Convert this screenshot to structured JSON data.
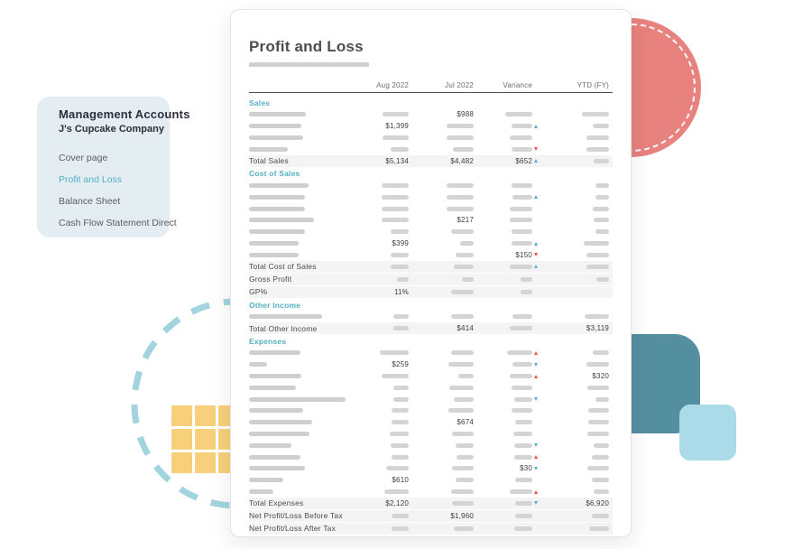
{
  "sidebar": {
    "title": "Management Accounts",
    "subtitle": "J's Cupcake Company",
    "items": [
      {
        "label": "Cover page",
        "active": false
      },
      {
        "label": "Profit and Loss",
        "active": true
      },
      {
        "label": "Balance Sheet",
        "active": false
      },
      {
        "label": "Cash Flow Statement Direct",
        "active": false
      }
    ]
  },
  "report": {
    "title": "Profit and Loss",
    "columns": [
      "Aug 2022",
      "Jul 2022",
      "Variance",
      "YTD (FY)"
    ],
    "rows": [
      {
        "t": "sec",
        "label": "Sales"
      },
      {
        "t": "item",
        "lw": 63,
        "c": [
          {
            "b": 29
          },
          {
            "v": "$988"
          },
          {
            "b": 30
          },
          {
            "b": 30
          }
        ]
      },
      {
        "t": "item",
        "lw": 58,
        "c": [
          {
            "v": "$1,399"
          },
          {
            "b": 30
          },
          {
            "b": 23,
            "a": "ut"
          },
          {
            "b": 18
          }
        ]
      },
      {
        "t": "item",
        "lw": 60,
        "c": [
          {
            "b": 29
          },
          {
            "b": 30
          },
          {
            "b": 25
          },
          {
            "b": 25
          }
        ]
      },
      {
        "t": "item",
        "lw": 43,
        "c": [
          {
            "b": 20
          },
          {
            "b": 23
          },
          {
            "b": 23,
            "a": "dr"
          },
          {
            "b": 25
          }
        ]
      },
      {
        "t": "tot",
        "label": "Total Sales",
        "c": [
          {
            "v": "$5,134"
          },
          {
            "v": "$4,482"
          },
          {
            "v": "$652",
            "a": "ut"
          },
          {
            "b": 17
          }
        ]
      },
      {
        "t": "sec",
        "label": "Cost of Sales"
      },
      {
        "t": "item",
        "lw": 66,
        "c": [
          {
            "b": 30
          },
          {
            "b": 30
          },
          {
            "b": 23
          },
          {
            "b": 15
          }
        ]
      },
      {
        "t": "item",
        "lw": 62,
        "c": [
          {
            "b": 30
          },
          {
            "b": 30
          },
          {
            "b": 22,
            "a": "ut"
          },
          {
            "b": 15
          }
        ]
      },
      {
        "t": "item",
        "lw": 62,
        "c": [
          {
            "b": 30
          },
          {
            "b": 30
          },
          {
            "b": 25
          },
          {
            "b": 18
          }
        ]
      },
      {
        "t": "item",
        "lw": 72,
        "c": [
          {
            "b": 30
          },
          {
            "v": "$217"
          },
          {
            "b": 25
          },
          {
            "b": 17
          }
        ]
      },
      {
        "t": "item",
        "lw": 62,
        "c": [
          {
            "b": 20
          },
          {
            "b": 25
          },
          {
            "b": 23
          },
          {
            "b": 15
          }
        ]
      },
      {
        "t": "item",
        "lw": 55,
        "c": [
          {
            "v": "$399"
          },
          {
            "b": 15
          },
          {
            "b": 23,
            "a": "ut"
          },
          {
            "b": 28
          }
        ]
      },
      {
        "t": "item",
        "lw": 55,
        "c": [
          {
            "b": 20
          },
          {
            "b": 20
          },
          {
            "v": "$150",
            "a": "dr"
          },
          {
            "b": 25
          }
        ]
      },
      {
        "t": "tot",
        "label": "Total Cost of Sales",
        "c": [
          {
            "b": 20
          },
          {
            "b": 22
          },
          {
            "b": 25,
            "a": "ut"
          },
          {
            "b": 25
          }
        ]
      },
      {
        "t": "tot",
        "label": "Gross Profit",
        "c": [
          {
            "b": 13
          },
          {
            "b": 13
          },
          {
            "b": 13
          },
          {
            "b": 14
          }
        ]
      },
      {
        "t": "tot",
        "label": "GP%",
        "c": [
          {
            "v": "11%"
          },
          {
            "b": 25
          },
          {
            "b": 13
          },
          null
        ]
      },
      {
        "t": "sec",
        "label": "Other Income"
      },
      {
        "t": "item",
        "lw": 81,
        "c": [
          {
            "b": 17
          },
          {
            "b": 25
          },
          {
            "b": 22
          },
          {
            "b": 27
          }
        ]
      },
      {
        "t": "tot",
        "label": "Total Other Income",
        "c": [
          {
            "b": 17
          },
          {
            "v": "$414"
          },
          {
            "b": 25
          },
          {
            "v": "$3,119"
          }
        ]
      },
      {
        "t": "sec",
        "label": "Expenses"
      },
      {
        "t": "item",
        "lw": 57,
        "c": [
          {
            "b": 32
          },
          {
            "b": 25
          },
          {
            "b": 28,
            "a": "ur"
          },
          {
            "b": 18
          }
        ]
      },
      {
        "t": "item",
        "lw": 20,
        "c": [
          {
            "v": "$259"
          },
          {
            "b": 28
          },
          {
            "b": 22,
            "a": "dt"
          },
          {
            "b": 25
          }
        ]
      },
      {
        "t": "item",
        "lw": 58,
        "c": [
          {
            "b": 30
          },
          {
            "b": 17
          },
          {
            "b": 25,
            "a": "ur"
          },
          {
            "v": "$320"
          }
        ]
      },
      {
        "t": "item",
        "lw": 52,
        "c": [
          {
            "b": 17
          },
          {
            "b": 27
          },
          {
            "b": 23
          },
          {
            "b": 24
          }
        ]
      },
      {
        "t": "item",
        "lw": 107,
        "c": [
          {
            "b": 17
          },
          {
            "b": 22
          },
          {
            "b": 20,
            "a": "dt"
          },
          {
            "b": 15
          }
        ]
      },
      {
        "t": "item",
        "lw": 60,
        "c": [
          {
            "b": 19
          },
          {
            "b": 28
          },
          {
            "b": 23
          },
          {
            "b": 23
          }
        ]
      },
      {
        "t": "item",
        "lw": 70,
        "c": [
          {
            "b": 19
          },
          {
            "v": "$674"
          },
          {
            "b": 19
          },
          {
            "b": 23
          }
        ]
      },
      {
        "t": "item",
        "lw": 67,
        "c": [
          {
            "b": 21
          },
          {
            "b": 24
          },
          {
            "b": 21
          },
          {
            "b": 24
          }
        ]
      },
      {
        "t": "item",
        "lw": 47,
        "c": [
          {
            "b": 20
          },
          {
            "b": 20
          },
          {
            "b": 20,
            "a": "dt"
          },
          {
            "b": 17
          }
        ]
      },
      {
        "t": "item",
        "lw": 57,
        "c": [
          {
            "b": 19
          },
          {
            "b": 19
          },
          {
            "b": 20,
            "a": "ur"
          },
          {
            "b": 19
          }
        ]
      },
      {
        "t": "item",
        "lw": 62,
        "c": [
          {
            "b": 25
          },
          {
            "b": 24
          },
          {
            "v": "$30",
            "a": "dt"
          },
          {
            "b": 24
          }
        ]
      },
      {
        "t": "item",
        "lw": 38,
        "c": [
          {
            "v": "$610"
          },
          {
            "b": 20
          },
          {
            "b": 19
          },
          {
            "b": 19
          }
        ]
      },
      {
        "t": "item",
        "lw": 27,
        "c": [
          {
            "b": 27
          },
          {
            "b": 25
          },
          {
            "b": 25,
            "a": "ur"
          },
          {
            "b": 17
          }
        ]
      },
      {
        "t": "tot",
        "label": "Total Expenses",
        "c": [
          {
            "v": "$2,120"
          },
          {
            "b": 24
          },
          {
            "b": 19,
            "a": "dt"
          },
          {
            "v": "$6,920"
          }
        ]
      },
      {
        "t": "tot",
        "label": "Net Profit/Loss Before Tax",
        "c": [
          {
            "b": 19
          },
          {
            "v": "$1,960"
          },
          {
            "b": 19
          },
          {
            "b": 19
          }
        ]
      },
      {
        "t": "tot",
        "label": "Net Profit/Loss After Tax",
        "c": [
          {
            "b": 19
          },
          {
            "b": 22
          },
          {
            "b": 20
          },
          {
            "b": 22
          }
        ]
      }
    ]
  },
  "colors": {
    "accent_teal": "#54afc4",
    "negative_red": "#e25050",
    "coral_circle": "#e8827e",
    "teal_square": "#548fa0",
    "light_blue_square": "#abdbe8",
    "dashed_circle": "#a2d4e0",
    "yellow_tile": "#f8d07b",
    "sidebar_bg": "#e3edf2",
    "total_row_bg": "#f4f4f4"
  }
}
